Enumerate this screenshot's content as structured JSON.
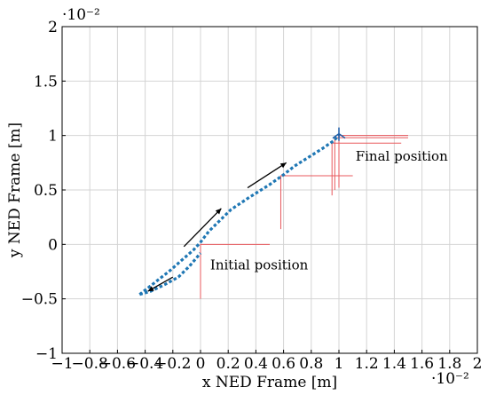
{
  "chart_data": {
    "type": "line",
    "title": "",
    "xlabel": "x NED Frame [m]",
    "ylabel": "y NED Frame [m]",
    "x_multiplier": "·10⁻²",
    "y_multiplier": "·10⁻²",
    "xlim": [
      -1,
      2
    ],
    "ylim": [
      -1,
      2
    ],
    "grid": true,
    "x_ticks": [
      "−1",
      "−0.8",
      "−0.6",
      "−0.4",
      "−0.2",
      "0",
      "0.2",
      "0.4",
      "0.6",
      "0.8",
      "1",
      "1.2",
      "1.4",
      "1.6",
      "1.8",
      "2"
    ],
    "x_tick_values": [
      -1,
      -0.8,
      -0.6,
      -0.4,
      -0.2,
      0,
      0.2,
      0.4,
      0.6,
      0.8,
      1,
      1.2,
      1.4,
      1.6,
      1.8,
      2
    ],
    "y_ticks": [
      "−1",
      "−0.5",
      "0",
      "0.5",
      "1",
      "1.5",
      "2"
    ],
    "y_tick_values": [
      -1,
      -0.5,
      0,
      0.5,
      1,
      1.5,
      2
    ],
    "series": [
      {
        "color": "#1f77b4",
        "style": "dotted",
        "x": [
          -0.44,
          -0.38,
          -0.3,
          -0.22,
          -0.14,
          -0.05,
          0.0,
          0.06,
          0.14,
          0.22,
          0.35,
          0.5,
          0.6,
          0.68,
          0.78,
          0.88,
          0.96,
          1.0
        ],
        "y": [
          -0.46,
          -0.4,
          -0.32,
          -0.24,
          -0.15,
          -0.05,
          0.02,
          0.12,
          0.22,
          0.32,
          0.43,
          0.55,
          0.64,
          0.72,
          0.8,
          0.88,
          0.95,
          1.0
        ]
      },
      {
        "color": "#1f77b4",
        "style": "dotted",
        "x": [
          -0.44,
          -0.36,
          -0.26,
          -0.16,
          -0.08,
          0.0
        ],
        "y": [
          -0.46,
          -0.43,
          -0.37,
          -0.3,
          -0.2,
          -0.08
        ]
      }
    ],
    "reference_lines": [
      {
        "color": "#e8585c",
        "points": [
          [
            0,
            -0.5
          ],
          [
            0,
            0
          ],
          [
            0.5,
            0
          ]
        ]
      },
      {
        "color": "#e8585c",
        "points": [
          [
            0.58,
            0.14
          ],
          [
            0.58,
            0.63
          ],
          [
            1.1,
            0.63
          ]
        ]
      },
      {
        "color": "#e8585c",
        "points": [
          [
            0.95,
            0.45
          ],
          [
            0.95,
            0.93
          ],
          [
            1.45,
            0.93
          ]
        ]
      },
      {
        "color": "#e8585c",
        "points": [
          [
            0.97,
            0.5
          ],
          [
            0.97,
            0.98
          ],
          [
            1.5,
            0.98
          ]
        ]
      },
      {
        "color": "#e8585c",
        "points": [
          [
            1.0,
            0.52
          ],
          [
            1.0,
            1.0
          ],
          [
            1.5,
            1.0
          ]
        ]
      }
    ],
    "direction_arrows": [
      {
        "from": [
          -0.12,
          -0.02
        ],
        "to": [
          0.15,
          0.33
        ]
      },
      {
        "from": [
          0.34,
          0.52
        ],
        "to": [
          0.62,
          0.75
        ]
      },
      {
        "from": [
          -0.2,
          -0.3
        ],
        "to": [
          -0.38,
          -0.43
        ]
      }
    ],
    "annotations": [
      {
        "text": "Initial position",
        "x": 0.07,
        "y": -0.23
      },
      {
        "text": "Final position",
        "x": 1.12,
        "y": 0.77
      }
    ]
  }
}
